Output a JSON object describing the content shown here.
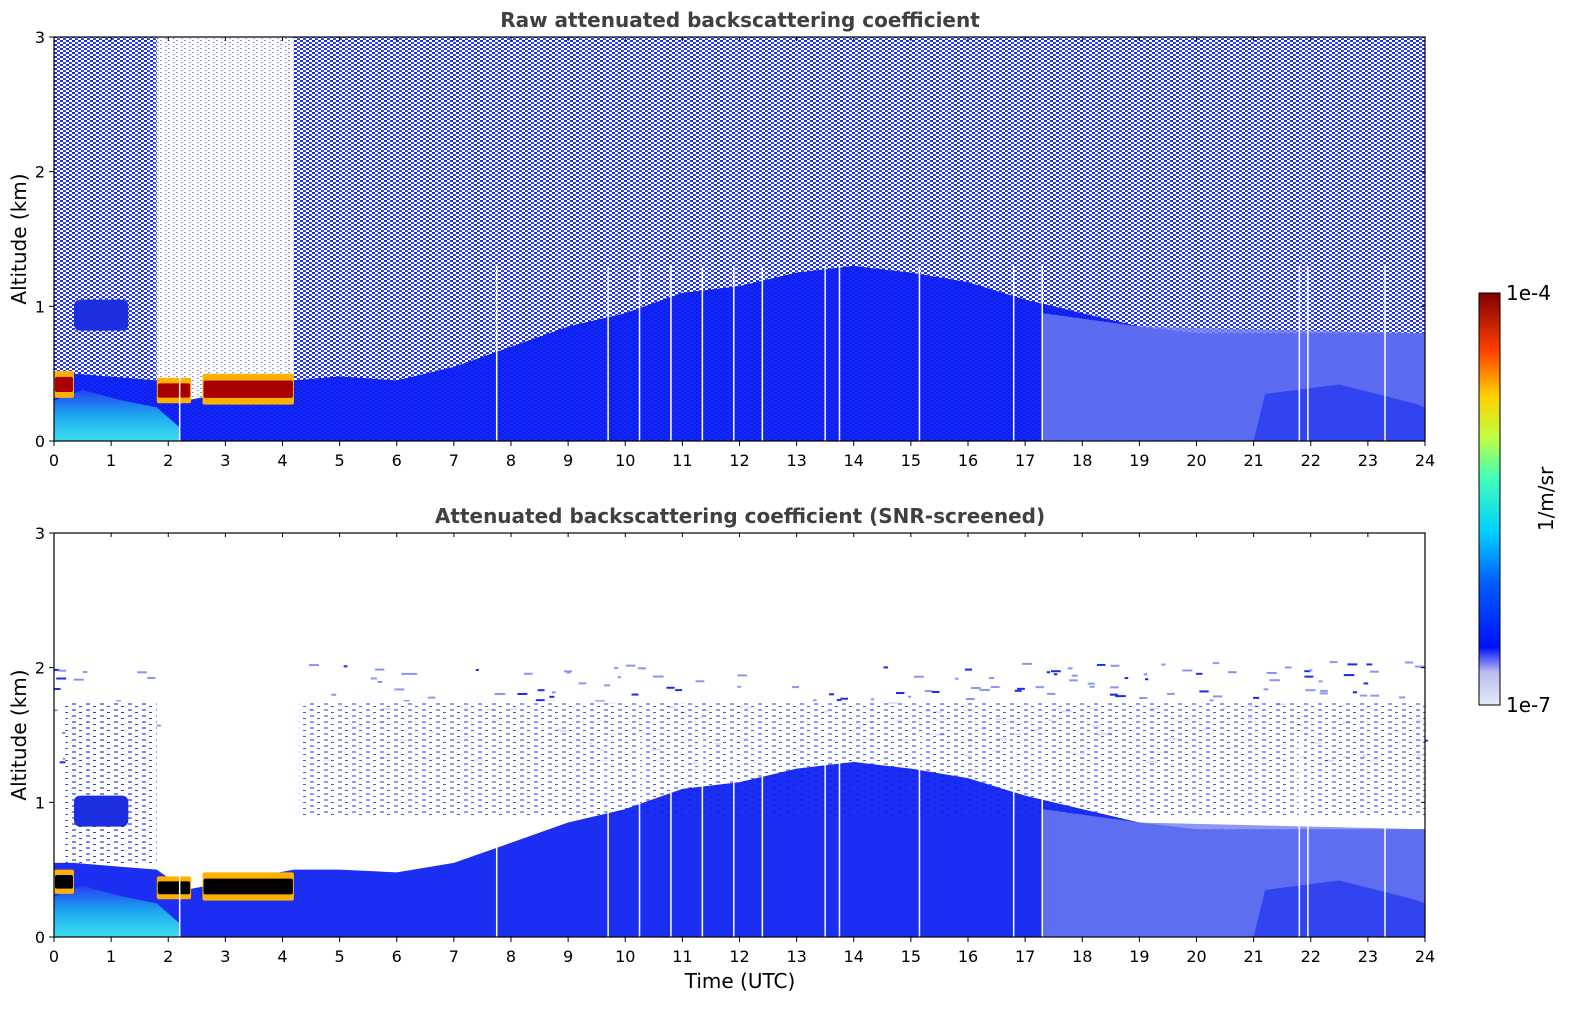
{
  "chart_data": [
    {
      "type": "heatmap",
      "title": "Raw attenuated backscattering coefficient",
      "xlabel": "",
      "ylabel": "Altitude (km)",
      "xlim": [
        0,
        24
      ],
      "ylim": [
        0,
        3
      ],
      "x_ticks": [
        "0",
        "1",
        "2",
        "3",
        "4",
        "5",
        "6",
        "7",
        "8",
        "9",
        "10",
        "11",
        "12",
        "13",
        "14",
        "15",
        "16",
        "17",
        "18",
        "19",
        "20",
        "21",
        "22",
        "23",
        "24"
      ],
      "y_ticks": [
        "0",
        "1",
        "2",
        "3"
      ],
      "gap_times": [
        2.2,
        7.75,
        9.7,
        10.25,
        10.8,
        11.35,
        11.9,
        12.4,
        13.5,
        13.75,
        15.15,
        16.8,
        17.3,
        21.8,
        21.95,
        23.3
      ],
      "boundary_layer_top_km": [
        [
          0,
          0.5
        ],
        [
          0.35,
          0.5
        ],
        [
          1.8,
          0.45
        ],
        [
          2.3,
          0.3
        ],
        [
          4.2,
          0.45
        ],
        [
          5,
          0.48
        ],
        [
          6,
          0.45
        ],
        [
          7,
          0.55
        ],
        [
          8,
          0.7
        ],
        [
          9,
          0.85
        ],
        [
          10,
          0.95
        ],
        [
          11,
          1.1
        ],
        [
          12,
          1.15
        ],
        [
          13,
          1.25
        ],
        [
          14,
          1.3
        ],
        [
          15,
          1.25
        ],
        [
          16,
          1.18
        ],
        [
          17,
          1.05
        ],
        [
          18,
          0.95
        ],
        [
          19,
          0.85
        ],
        [
          20,
          0.8
        ],
        [
          21,
          0.8
        ],
        [
          22,
          0.8
        ],
        [
          23,
          0.8
        ],
        [
          24,
          0.8
        ]
      ],
      "cloud_layers": [
        {
          "t_start": 0.0,
          "t_end": 0.35,
          "base_km": 0.32,
          "top_km": 0.52
        },
        {
          "t_start": 0.35,
          "t_end": 1.3,
          "base_km": 0.82,
          "top_km": 1.05
        },
        {
          "t_start": 1.8,
          "t_end": 2.4,
          "base_km": 0.28,
          "top_km": 0.47
        },
        {
          "t_start": 2.6,
          "t_end": 4.2,
          "base_km": 0.27,
          "top_km": 0.5
        }
      ],
      "colorbar": {
        "label": "1/m/sr",
        "min_label": "1e-7",
        "max_label": "1e-4",
        "scale": "log",
        "colormap": "jet"
      }
    },
    {
      "type": "heatmap",
      "title": "Attenuated backscattering coefficient (SNR-screened)",
      "xlabel": "Time (UTC)",
      "ylabel": "Altitude (km)",
      "xlim": [
        0,
        24
      ],
      "ylim": [
        0,
        3
      ],
      "x_ticks": [
        "0",
        "1",
        "2",
        "3",
        "4",
        "5",
        "6",
        "7",
        "8",
        "9",
        "10",
        "11",
        "12",
        "13",
        "14",
        "15",
        "16",
        "17",
        "18",
        "19",
        "20",
        "21",
        "22",
        "23",
        "24"
      ],
      "y_ticks": [
        "0",
        "1",
        "2",
        "3"
      ],
      "gap_times": [
        2.2,
        7.75,
        9.7,
        10.25,
        10.8,
        11.35,
        11.9,
        12.4,
        13.5,
        13.75,
        15.15,
        16.8,
        17.3,
        21.8,
        21.95,
        23.3
      ],
      "boundary_layer_top_km": [
        [
          0,
          0.55
        ],
        [
          0.35,
          0.55
        ],
        [
          1.8,
          0.5
        ],
        [
          2.3,
          0.35
        ],
        [
          4.2,
          0.5
        ],
        [
          5,
          0.5
        ],
        [
          6,
          0.48
        ],
        [
          7,
          0.55
        ],
        [
          8,
          0.7
        ],
        [
          9,
          0.85
        ],
        [
          10,
          0.95
        ],
        [
          11,
          1.1
        ],
        [
          12,
          1.15
        ],
        [
          13,
          1.25
        ],
        [
          14,
          1.3
        ],
        [
          15,
          1.25
        ],
        [
          16,
          1.18
        ],
        [
          17,
          1.05
        ],
        [
          18,
          0.95
        ],
        [
          19,
          0.85
        ],
        [
          20,
          0.8
        ],
        [
          21,
          0.8
        ],
        [
          22,
          0.8
        ],
        [
          23,
          0.8
        ],
        [
          24,
          0.8
        ]
      ],
      "cloud_layers": [
        {
          "t_start": 0.0,
          "t_end": 0.35,
          "base_km": 0.32,
          "top_km": 0.5
        },
        {
          "t_start": 0.35,
          "t_end": 1.3,
          "base_km": 0.82,
          "top_km": 1.05
        },
        {
          "t_start": 1.8,
          "t_end": 2.4,
          "base_km": 0.28,
          "top_km": 0.45
        },
        {
          "t_start": 2.6,
          "t_end": 4.2,
          "base_km": 0.27,
          "top_km": 0.48
        }
      ],
      "colorbar": {
        "label": "1/m/sr",
        "min_label": "1e-7",
        "max_label": "1e-4",
        "scale": "log",
        "colormap": "jet"
      }
    }
  ],
  "colors": {
    "noise": "#1a2bf0",
    "boundary_layer": "#0a1cf2",
    "screened_aerosol": "#6f7ef0",
    "surface_layer": "#28d2f0",
    "cloud_core": "#a80000",
    "cloud_edge": "#ffb000",
    "cloud_core_screened": "#000000",
    "title_text": "#404040"
  }
}
